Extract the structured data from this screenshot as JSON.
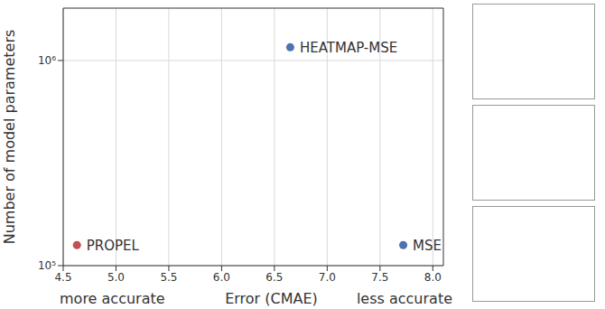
{
  "chart_data": {
    "type": "scatter",
    "x_label": "Error (CMAE)",
    "x_label_left": "more accurate",
    "x_label_right": "less accurate",
    "y_label": "Number of model parameters",
    "labels": [
      "PROPEL",
      "HEATMAP-MSE",
      "MSE"
    ],
    "x": [
      4.63,
      6.65,
      7.72
    ],
    "values": [
      126000,
      1160000,
      126000
    ],
    "colors": [
      "#c44e52",
      "#4c72b0",
      "#4c72b0"
    ],
    "xlim": [
      4.5,
      8.1
    ],
    "xticks": [
      {
        "value": 4.5,
        "label": "4.5"
      },
      {
        "value": 5,
        "label": "5.0"
      },
      {
        "value": 5.5,
        "label": "5.5"
      },
      {
        "value": 6,
        "label": "6.0"
      },
      {
        "value": 6.5,
        "label": "6.5"
      },
      {
        "value": 7,
        "label": "7.0"
      },
      {
        "value": 7.5,
        "label": "7.5"
      },
      {
        "value": 8,
        "label": "8.0"
      }
    ],
    "ylim": [
      100000,
      1800000
    ],
    "yticks": [
      {
        "value": 100000,
        "label": "10⁵"
      },
      {
        "value": 1000000,
        "label": "10⁶"
      }
    ],
    "log": "y",
    "grid": true,
    "data_labels": true
  }
}
